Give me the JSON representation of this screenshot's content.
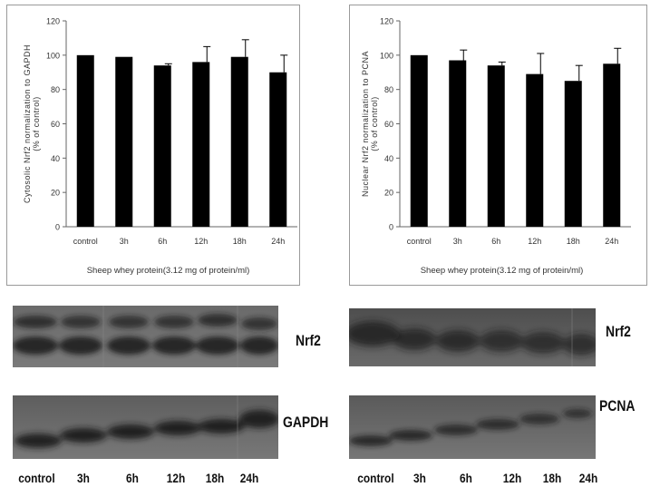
{
  "chart_data": [
    {
      "type": "bar",
      "categories": [
        "control",
        "3h",
        "6h",
        "12h",
        "18h",
        "24h"
      ],
      "values": [
        100,
        99,
        94,
        96,
        99,
        90
      ],
      "errors": [
        0,
        0,
        1,
        9,
        10,
        10
      ],
      "ylabel": "Cytosolic Nrf2 normalization to GAPDH (% of control)",
      "xlabel": "Sheep whey protein(3.12 mg of protein/ml)",
      "ylim": [
        0,
        120
      ],
      "yticks": [
        0,
        20,
        40,
        60,
        80,
        100,
        120
      ],
      "grid": false
    },
    {
      "type": "bar",
      "categories": [
        "control",
        "3h",
        "6h",
        "12h",
        "18h",
        "24h"
      ],
      "values": [
        100,
        97,
        94,
        89,
        85,
        95
      ],
      "errors": [
        0,
        6,
        2,
        12,
        9,
        9
      ],
      "ylabel": "Nuclear Nrf2 normalization to PCNA (% of control)",
      "xlabel": "Sheep whey protein(3.12 mg of protein/ml)",
      "ylim": [
        0,
        120
      ],
      "yticks": [
        0,
        20,
        40,
        60,
        80,
        100,
        120
      ],
      "grid": false
    }
  ],
  "blots": {
    "left_labels": [
      "Nrf2",
      "GAPDH"
    ],
    "right_labels": [
      "Nrf2",
      "PCNA"
    ],
    "lanes": [
      "control",
      "3h",
      "6h",
      "12h",
      "18h",
      "24h"
    ]
  },
  "colors": {
    "bar": "#000000",
    "blot_bg": "#5c5c5c",
    "band": "#252525"
  }
}
